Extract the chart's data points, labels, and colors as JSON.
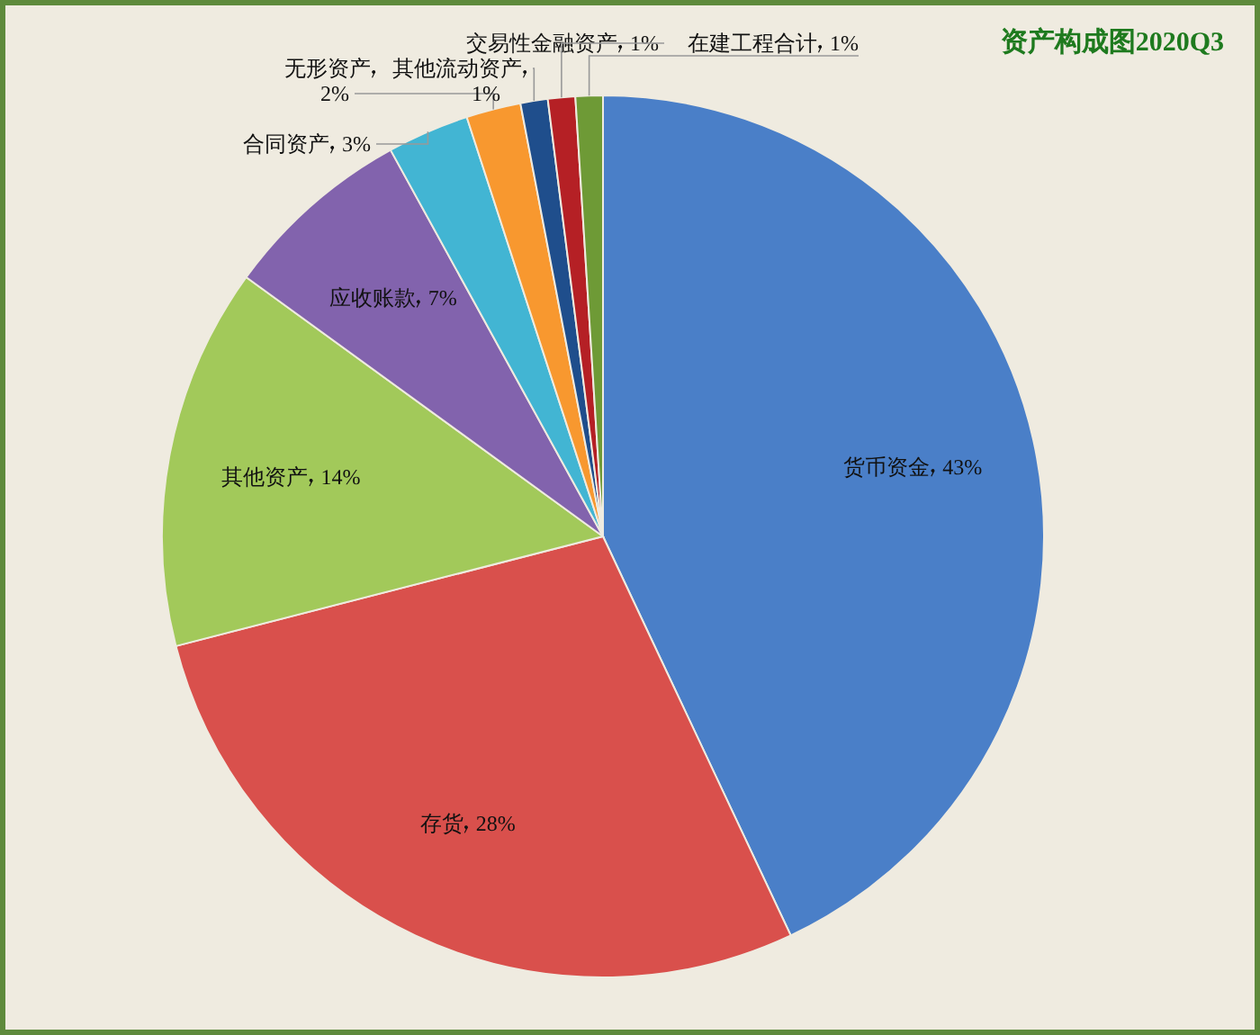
{
  "chart_data": {
    "type": "pie",
    "title": "资产构成图2020Q3",
    "categories": [
      "货币资金",
      "存货",
      "其他资产",
      "应收账款",
      "合同资产",
      "无形资产",
      "其他流动资产",
      "交易性金融资产",
      "在建工程合计"
    ],
    "values": [
      43,
      28,
      14,
      7,
      3,
      2,
      1,
      1,
      1
    ],
    "value_labels": [
      "43%",
      "28%",
      "14%",
      "7%",
      "3%",
      "2%",
      "1%",
      "1%",
      "1%"
    ],
    "colors": [
      "#4a7fc8",
      "#d9504c",
      "#a2c95a",
      "#8263ad",
      "#42b5d3",
      "#f8982f",
      "#1f4e8c",
      "#b52025",
      "#6e9a36"
    ]
  }
}
